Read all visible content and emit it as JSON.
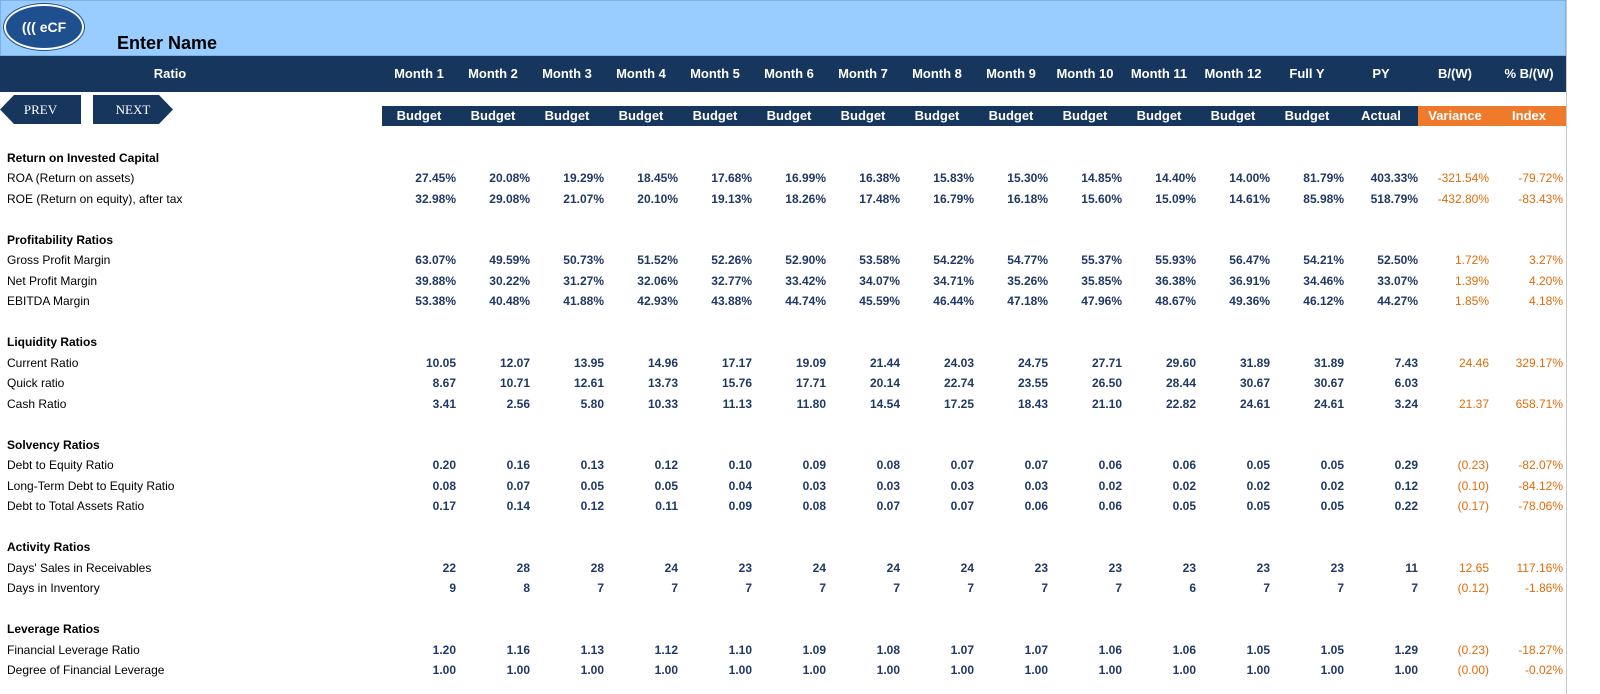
{
  "app": {
    "logo_text": "((( eCF",
    "title": "Enter Name"
  },
  "nav": {
    "prev_label": "PREV",
    "next_label": "NEXT"
  },
  "header": {
    "ratio_label": "Ratio",
    "columns": [
      "Month 1",
      "Month 2",
      "Month 3",
      "Month 4",
      "Month 5",
      "Month 6",
      "Month 7",
      "Month 8",
      "Month 9",
      "Month 10",
      "Month 11",
      "Month 12",
      "Full Y",
      "PY",
      "B/(W)",
      "% B/(W)"
    ],
    "subheaders": [
      "Budget",
      "Budget",
      "Budget",
      "Budget",
      "Budget",
      "Budget",
      "Budget",
      "Budget",
      "Budget",
      "Budget",
      "Budget",
      "Budget",
      "Budget",
      "Actual",
      "Variance",
      "Index"
    ]
  },
  "colors": {
    "header_bg": "#17365d",
    "top_band": "#99ccff",
    "variance_bg": "#f07a2c",
    "value_text": "#1f3864",
    "variance_text": "#e26b0a"
  },
  "sections": [
    {
      "title": "Return on Invested Capital",
      "rows": [
        {
          "label": "ROA (Return on assets)",
          "values": [
            "27.45%",
            "20.08%",
            "19.29%",
            "18.45%",
            "17.68%",
            "16.99%",
            "16.38%",
            "15.83%",
            "15.30%",
            "14.85%",
            "14.40%",
            "14.00%",
            "81.79%",
            "403.33%",
            "-321.54%",
            "-79.72%"
          ]
        },
        {
          "label": "ROE (Return on equity), after tax",
          "values": [
            "32.98%",
            "29.08%",
            "21.07%",
            "20.10%",
            "19.13%",
            "18.26%",
            "17.48%",
            "16.79%",
            "16.18%",
            "15.60%",
            "15.09%",
            "14.61%",
            "85.98%",
            "518.79%",
            "-432.80%",
            "-83.43%"
          ]
        }
      ]
    },
    {
      "title": "Profitability Ratios",
      "rows": [
        {
          "label": "Gross Profit Margin",
          "values": [
            "63.07%",
            "49.59%",
            "50.73%",
            "51.52%",
            "52.26%",
            "52.90%",
            "53.58%",
            "54.22%",
            "54.77%",
            "55.37%",
            "55.93%",
            "56.47%",
            "54.21%",
            "52.50%",
            "1.72%",
            "3.27%"
          ]
        },
        {
          "label": "Net Profit Margin",
          "values": [
            "39.88%",
            "30.22%",
            "31.27%",
            "32.06%",
            "32.77%",
            "33.42%",
            "34.07%",
            "34.71%",
            "35.26%",
            "35.85%",
            "36.38%",
            "36.91%",
            "34.46%",
            "33.07%",
            "1.39%",
            "4.20%"
          ]
        },
        {
          "label": "EBITDA Margin",
          "values": [
            "53.38%",
            "40.48%",
            "41.88%",
            "42.93%",
            "43.88%",
            "44.74%",
            "45.59%",
            "46.44%",
            "47.18%",
            "47.96%",
            "48.67%",
            "49.36%",
            "46.12%",
            "44.27%",
            "1.85%",
            "4.18%"
          ]
        }
      ]
    },
    {
      "title": "Liquidity Ratios",
      "rows": [
        {
          "label": "Current Ratio",
          "values": [
            "10.05",
            "12.07",
            "13.95",
            "14.96",
            "17.17",
            "19.09",
            "21.44",
            "24.03",
            "24.75",
            "27.71",
            "29.60",
            "31.89",
            "31.89",
            "7.43",
            "24.46",
            "329.17%"
          ]
        },
        {
          "label": "Quick ratio",
          "values": [
            "8.67",
            "10.71",
            "12.61",
            "13.73",
            "15.76",
            "17.71",
            "20.14",
            "22.74",
            "23.55",
            "26.50",
            "28.44",
            "30.67",
            "30.67",
            "6.03",
            "",
            ""
          ]
        },
        {
          "label": "Cash Ratio",
          "values": [
            "3.41",
            "2.56",
            "5.80",
            "10.33",
            "11.13",
            "11.80",
            "14.54",
            "17.25",
            "18.43",
            "21.10",
            "22.82",
            "24.61",
            "24.61",
            "3.24",
            "21.37",
            "658.71%"
          ]
        }
      ]
    },
    {
      "title": " Solvency Ratios",
      "rows": [
        {
          "label": "Debt to Equity Ratio",
          "values": [
            "0.20",
            "0.16",
            "0.13",
            "0.12",
            "0.10",
            "0.09",
            "0.08",
            "0.07",
            "0.07",
            "0.06",
            "0.06",
            "0.05",
            "0.05",
            "0.29",
            "(0.23)",
            "-82.07%"
          ]
        },
        {
          "label": "Long-Term Debt to Equity Ratio",
          "values": [
            "0.08",
            "0.07",
            "0.05",
            "0.05",
            "0.04",
            "0.03",
            "0.03",
            "0.03",
            "0.03",
            "0.02",
            "0.02",
            "0.02",
            "0.02",
            "0.12",
            "(0.10)",
            "-84.12%"
          ]
        },
        {
          "label": "Debt to Total Assets Ratio",
          "values": [
            "0.17",
            "0.14",
            "0.12",
            "0.11",
            "0.09",
            "0.08",
            "0.07",
            "0.07",
            "0.06",
            "0.06",
            "0.05",
            "0.05",
            "0.05",
            "0.22",
            "(0.17)",
            "-78.06%"
          ]
        }
      ]
    },
    {
      "title": "Activity Ratios",
      "rows": [
        {
          "label": "Days' Sales in Receivables",
          "values": [
            "22",
            "28",
            "28",
            "24",
            "23",
            "24",
            "24",
            "24",
            "23",
            "23",
            "23",
            "23",
            "23",
            "11",
            "12.65",
            "117.16%"
          ]
        },
        {
          "label": "Days in Inventory",
          "values": [
            "9",
            "8",
            "7",
            "7",
            "7",
            "7",
            "7",
            "7",
            "7",
            "7",
            "6",
            "7",
            "7",
            "7",
            "(0.12)",
            "-1.86%"
          ]
        }
      ]
    },
    {
      "title": "Leverage Ratios",
      "rows": [
        {
          "label": "Financial Leverage Ratio",
          "values": [
            "1.20",
            "1.16",
            "1.13",
            "1.12",
            "1.10",
            "1.09",
            "1.08",
            "1.07",
            "1.07",
            "1.06",
            "1.06",
            "1.05",
            "1.05",
            "1.29",
            "(0.23)",
            "-18.27%"
          ]
        },
        {
          "label": "Degree of Financial Leverage",
          "values": [
            "1.00",
            "1.00",
            "1.00",
            "1.00",
            "1.00",
            "1.00",
            "1.00",
            "1.00",
            "1.00",
            "1.00",
            "1.00",
            "1.00",
            "1.00",
            "1.00",
            "(0.00)",
            "-0.02%"
          ]
        }
      ]
    }
  ]
}
